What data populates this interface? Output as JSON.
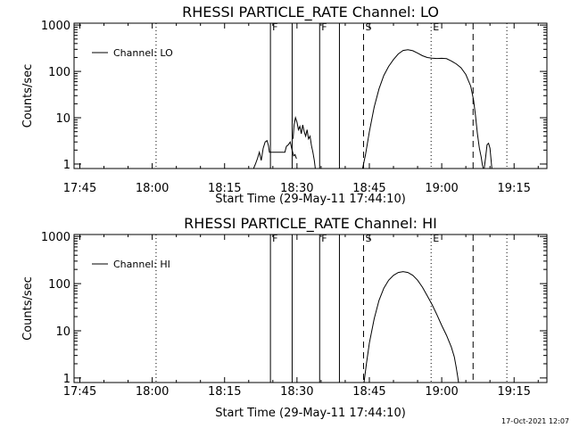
{
  "chart_data": [
    {
      "type": "line",
      "title": "RHESSI PARTICLE_RATE Channel: LO",
      "xlabel": "Start Time (29-May-11 17:44:10)",
      "ylabel": "Counts/sec",
      "yscale": "log",
      "ylim": [
        0.8,
        1100
      ],
      "xlim_minutes": [
        -0.2,
        97.8
      ],
      "xticks": [
        {
          "t": 1,
          "label": "17:45"
        },
        {
          "t": 16,
          "label": "18:00"
        },
        {
          "t": 31,
          "label": "18:15"
        },
        {
          "t": 46,
          "label": "18:30"
        },
        {
          "t": 61,
          "label": "18:45"
        },
        {
          "t": 76,
          "label": "19:00"
        },
        {
          "t": 91,
          "label": "19:15"
        }
      ],
      "yticks": [
        {
          "v": 1,
          "label": "1"
        },
        {
          "v": 10,
          "label": "10"
        },
        {
          "v": 100,
          "label": "100"
        },
        {
          "v": 1000,
          "label": "1000"
        }
      ],
      "legend": {
        "label": "Channel: LO",
        "position": "top-left"
      },
      "markers": [
        {
          "t": 16.8,
          "style": "dotted",
          "label": ""
        },
        {
          "t": 40.5,
          "style": "solid",
          "label": "F"
        },
        {
          "t": 45.0,
          "style": "solid",
          "label": ""
        },
        {
          "t": 50.7,
          "style": "solid",
          "label": "F"
        },
        {
          "t": 54.8,
          "style": "solid",
          "label": ""
        },
        {
          "t": 59.8,
          "style": "dashed",
          "label": "S"
        },
        {
          "t": 73.8,
          "style": "dotted",
          "label": "E"
        },
        {
          "t": 82.5,
          "style": "dashed",
          "label": ""
        },
        {
          "t": 89.5,
          "style": "dotted",
          "label": ""
        }
      ],
      "series": [
        {
          "name": "Channel: LO",
          "segments": [
            [
              [
                37.0,
                0.8
              ],
              [
                37.4,
                1.0
              ],
              [
                37.8,
                1.3
              ],
              [
                38.2,
                1.8
              ],
              [
                38.6,
                1.2
              ],
              [
                39.0,
                2.2
              ],
              [
                39.4,
                3.0
              ],
              [
                39.8,
                3.2
              ],
              [
                40.1,
                2.5
              ],
              [
                40.3,
                1.8
              ],
              [
                41.0,
                1.8
              ],
              [
                42.0,
                1.8
              ],
              [
                43.0,
                1.8
              ],
              [
                43.5,
                1.8
              ],
              [
                43.8,
                2.4
              ],
              [
                44.2,
                2.6
              ],
              [
                44.6,
                3.0
              ],
              [
                44.9,
                2.2
              ],
              [
                45.3,
                1.5
              ],
              [
                45.6,
                1.6
              ],
              [
                45.9,
                1.3
              ]
            ],
            [
              [
                45.2,
                3.5
              ],
              [
                45.4,
                7.0
              ],
              [
                45.7,
                10.0
              ],
              [
                46.0,
                8.0
              ],
              [
                46.3,
                5.5
              ],
              [
                46.6,
                6.5
              ],
              [
                46.9,
                4.5
              ],
              [
                47.2,
                7.0
              ],
              [
                47.5,
                5.0
              ],
              [
                47.8,
                4.0
              ],
              [
                48.1,
                5.5
              ],
              [
                48.4,
                3.5
              ],
              [
                48.7,
                4.0
              ],
              [
                49.0,
                2.5
              ],
              [
                49.3,
                1.8
              ],
              [
                49.6,
                1.2
              ],
              [
                49.8,
                0.8
              ]
            ],
            [
              [
                59.6,
                0.8
              ],
              [
                60.2,
                1.6
              ],
              [
                61.0,
                5
              ],
              [
                62.0,
                17
              ],
              [
                63.0,
                42
              ],
              [
                64.0,
                82
              ],
              [
                65.0,
                128
              ],
              [
                66.0,
                180
              ],
              [
                67.0,
                238
              ],
              [
                68.0,
                283
              ],
              [
                69.0,
                295
              ],
              [
                70.0,
                280
              ],
              [
                71.0,
                248
              ],
              [
                72.0,
                218
              ],
              [
                73.0,
                200
              ],
              [
                74.0,
                193
              ],
              [
                75.0,
                190
              ],
              [
                76.0,
                192
              ],
              [
                77.0,
                188
              ],
              [
                78.0,
                168
              ],
              [
                79.0,
                146
              ],
              [
                80.0,
                120
              ],
              [
                81.0,
                86
              ],
              [
                82.0,
                48
              ],
              [
                82.6,
                24
              ],
              [
                83.0,
                11
              ],
              [
                83.4,
                4.5
              ],
              [
                83.8,
                2.2
              ],
              [
                84.2,
                1.4
              ],
              [
                84.4,
                1.0
              ],
              [
                84.6,
                0.8
              ]
            ],
            [
              [
                84.8,
                0.8
              ],
              [
                85.1,
                1.4
              ],
              [
                85.4,
                2.6
              ],
              [
                85.7,
                2.8
              ],
              [
                86.0,
                2.2
              ],
              [
                86.2,
                1.3
              ],
              [
                86.4,
                0.8
              ]
            ]
          ]
        }
      ]
    },
    {
      "type": "line",
      "title": "RHESSI PARTICLE_RATE Channel: HI",
      "xlabel": "Start Time (29-May-11 17:44:10)",
      "ylabel": "Counts/sec",
      "yscale": "log",
      "ylim": [
        0.8,
        1100
      ],
      "xlim_minutes": [
        -0.2,
        97.8
      ],
      "xticks": [
        {
          "t": 1,
          "label": "17:45"
        },
        {
          "t": 16,
          "label": "18:00"
        },
        {
          "t": 31,
          "label": "18:15"
        },
        {
          "t": 46,
          "label": "18:30"
        },
        {
          "t": 61,
          "label": "18:45"
        },
        {
          "t": 76,
          "label": "19:00"
        },
        {
          "t": 91,
          "label": "19:15"
        }
      ],
      "yticks": [
        {
          "v": 1,
          "label": "1"
        },
        {
          "v": 10,
          "label": "10"
        },
        {
          "v": 100,
          "label": "100"
        },
        {
          "v": 1000,
          "label": "1000"
        }
      ],
      "legend": {
        "label": "Channel: HI",
        "position": "top-left"
      },
      "markers": [
        {
          "t": 16.8,
          "style": "dotted",
          "label": ""
        },
        {
          "t": 40.5,
          "style": "solid",
          "label": "F"
        },
        {
          "t": 45.0,
          "style": "solid",
          "label": ""
        },
        {
          "t": 50.7,
          "style": "solid",
          "label": "F"
        },
        {
          "t": 54.8,
          "style": "solid",
          "label": ""
        },
        {
          "t": 59.8,
          "style": "dashed",
          "label": "S"
        },
        {
          "t": 73.8,
          "style": "dotted",
          "label": "E"
        },
        {
          "t": 82.5,
          "style": "dashed",
          "label": ""
        },
        {
          "t": 89.5,
          "style": "dotted",
          "label": ""
        }
      ],
      "series": [
        {
          "name": "Channel: HI",
          "segments": [
            [
              [
                59.9,
                0.8
              ],
              [
                60.4,
                2.0
              ],
              [
                61.0,
                5.5
              ],
              [
                62.0,
                18
              ],
              [
                63.0,
                44
              ],
              [
                64.0,
                80
              ],
              [
                65.0,
                118
              ],
              [
                66.0,
                150
              ],
              [
                67.0,
                172
              ],
              [
                68.0,
                180
              ],
              [
                69.0,
                172
              ],
              [
                70.0,
                150
              ],
              [
                71.0,
                118
              ],
              [
                72.0,
                84
              ],
              [
                73.0,
                55
              ],
              [
                74.0,
                36
              ],
              [
                75.0,
                22
              ],
              [
                76.0,
                13
              ],
              [
                77.0,
                8
              ],
              [
                78.0,
                4.5
              ],
              [
                78.6,
                2.8
              ],
              [
                79.0,
                1.7
              ],
              [
                79.3,
                1.1
              ],
              [
                79.5,
                0.8
              ]
            ]
          ]
        }
      ]
    }
  ],
  "timestamp": "17-Oct-2021 12:07"
}
